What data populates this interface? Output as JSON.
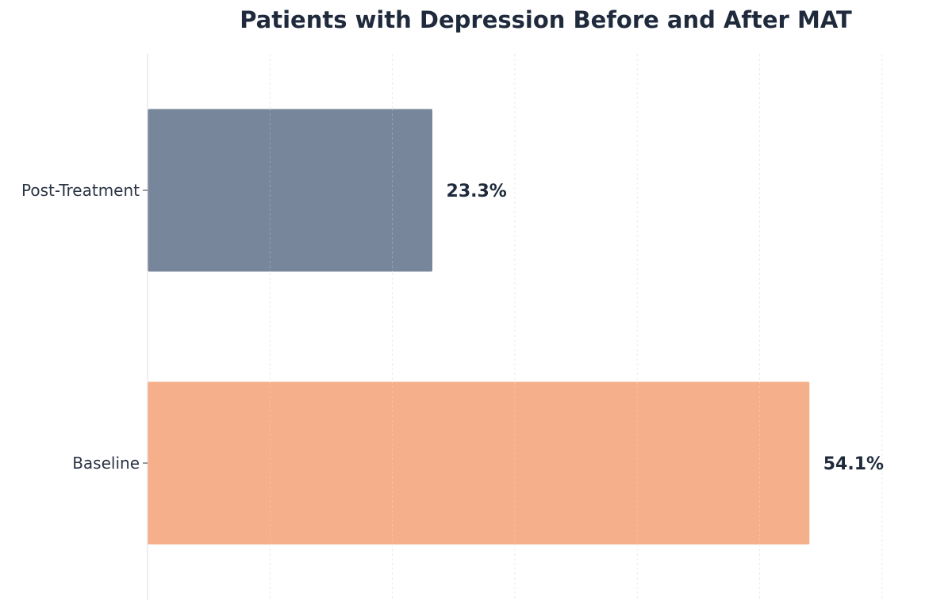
{
  "chart_data": {
    "type": "bar",
    "orientation": "horizontal",
    "title": "Patients with Depression Before and After MAT",
    "xlabel": "",
    "ylabel": "",
    "xlim": [
      0,
      60
    ],
    "grid": true,
    "categories": [
      "Post-Treatment",
      "Baseline"
    ],
    "values": [
      23.3,
      54.1
    ],
    "value_labels": [
      "23.3%",
      "54.1%"
    ],
    "colors": [
      "#78869b",
      "#f5af8a"
    ]
  }
}
